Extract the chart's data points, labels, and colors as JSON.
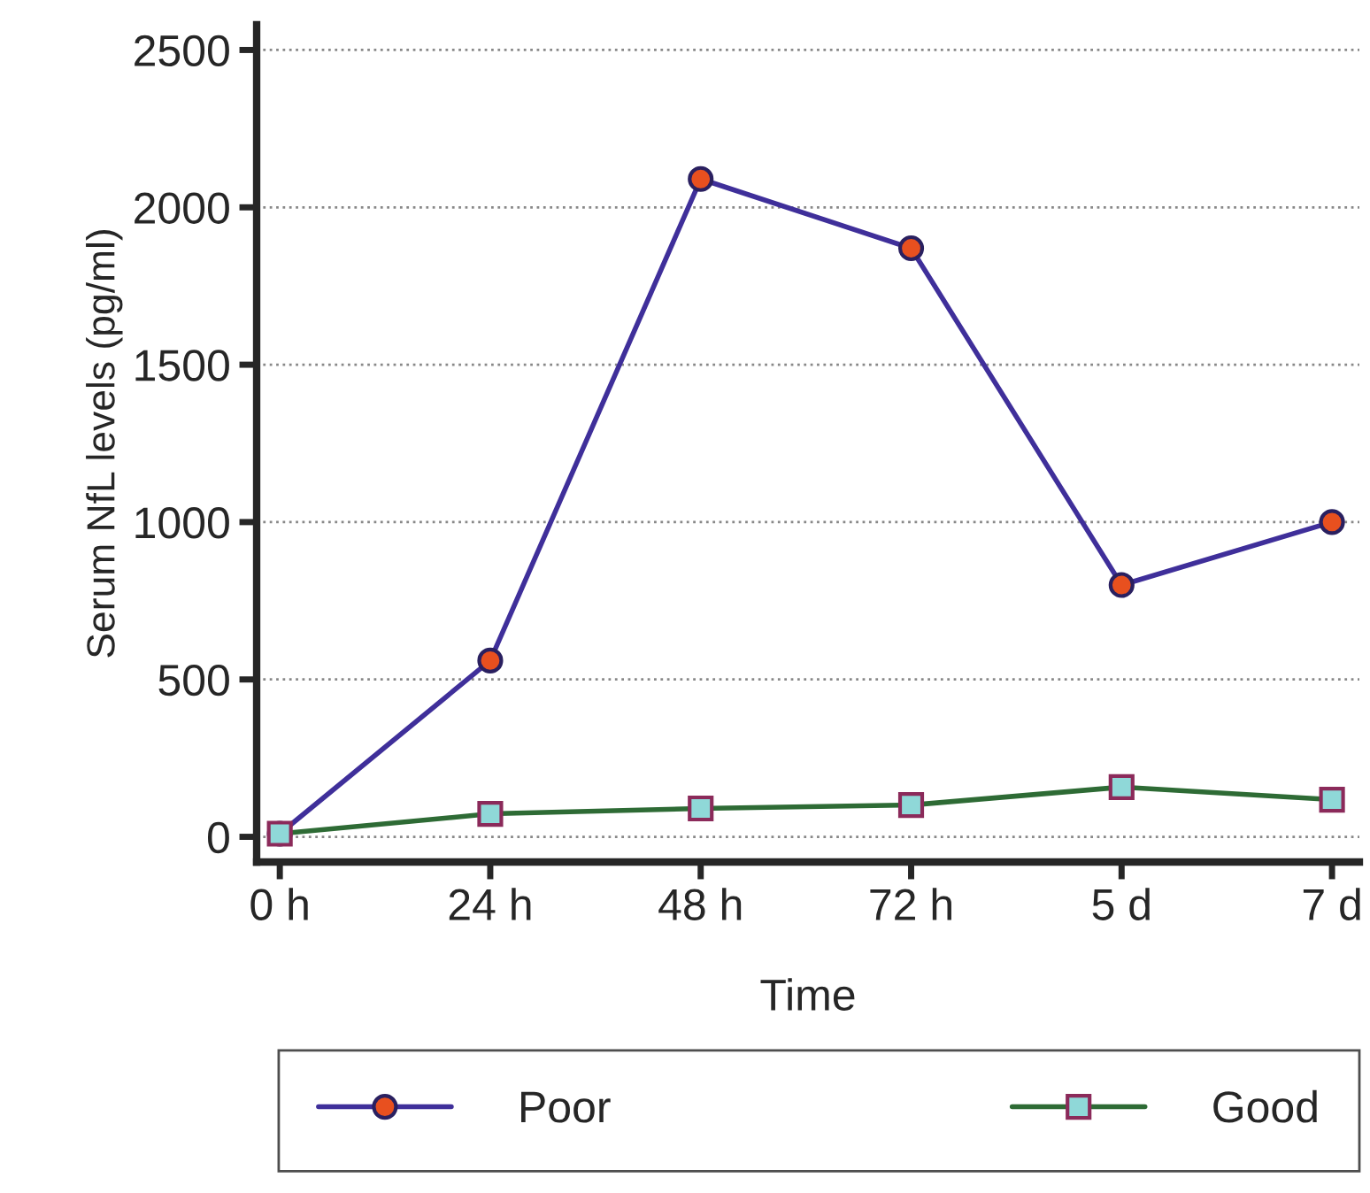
{
  "chart_data": {
    "type": "line",
    "xlabel": "Time",
    "ylabel": "Serum NfL levels (pg/ml)",
    "categories": [
      "0 h",
      "24 h",
      "48 h",
      "72 h",
      "5 d",
      "7 d"
    ],
    "series": [
      {
        "name": "Poor",
        "color": "#3f2f9a",
        "marker": "circle",
        "values": [
          10,
          560,
          2090,
          1870,
          800,
          1000
        ]
      },
      {
        "name": "Good",
        "color": "#2e6b35",
        "marker": "square",
        "values": [
          10,
          73,
          90,
          101,
          158,
          118
        ]
      }
    ],
    "ylim": [
      -80,
      2580
    ],
    "yticks": [
      0,
      500,
      1000,
      1500,
      2000,
      2500
    ],
    "grid": "y",
    "legend": "bottom",
    "line_style": "solid"
  }
}
